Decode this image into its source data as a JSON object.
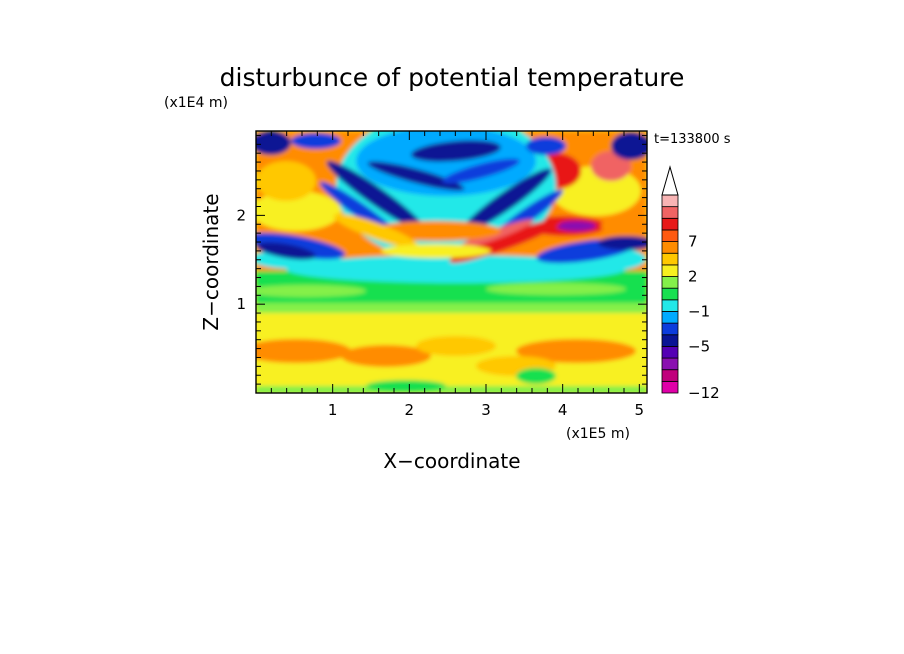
{
  "chart_data": {
    "type": "heatmap",
    "title": "disturbunce of potential temperature",
    "xlabel": "X−coordinate",
    "ylabel": "Z−coordinate",
    "x_unit": "(x1E5 m)",
    "y_unit": "(x1E4 m)",
    "annotation": "t=133800 s",
    "xlim": [
      0,
      5.1
    ],
    "ylim": [
      0,
      2.95
    ],
    "x_ticks": [
      1,
      2,
      3,
      4,
      5
    ],
    "y_ticks": [
      1,
      2
    ],
    "grid": false,
    "colorbar": {
      "levels": [
        -12,
        -10,
        -8,
        -6,
        -5,
        -3,
        -2,
        -1,
        0,
        1,
        2,
        3,
        5,
        7,
        8,
        9
      ],
      "tick_values": [
        -12,
        -5,
        -1,
        2,
        7
      ],
      "tick_labels": [
        "−12",
        "−5",
        "−1",
        "2",
        "7"
      ],
      "colors": [
        "#e000a8",
        "#c0007c",
        "#8a10b0",
        "#5400b4",
        "#0a1494",
        "#0c3cdc",
        "#00aaff",
        "#22e8e8",
        "#18e050",
        "#84f04a",
        "#f8f020",
        "#ffc800",
        "#ff8c00",
        "#ff5a10",
        "#e81818",
        "#f06464",
        "#f8b4b4"
      ],
      "extend": "max"
    }
  }
}
